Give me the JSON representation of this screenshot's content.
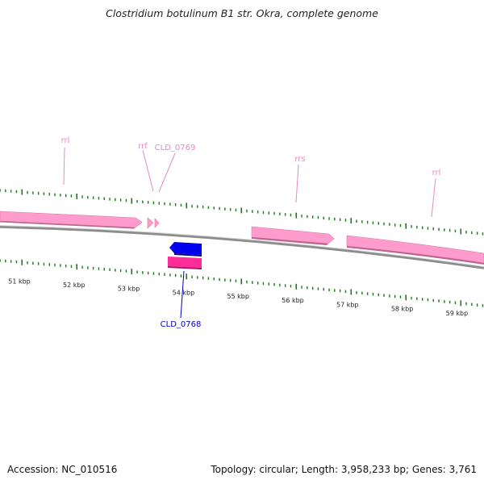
{
  "title": "Clostridium botulinum B1 str. Okra, complete genome",
  "footer": {
    "accession": "Accession: NC_010516",
    "summary": "Topology: circular; Length: 3,958,233 bp; Genes: 3,761"
  },
  "colors": {
    "backbone": "#8c8c8c",
    "rna_feature": "#ff9ccd",
    "cds_forward": "#0000ee",
    "cds_reverse": "#ff2d9a",
    "tick": "#1a7a1a",
    "label_rna": "#e889c0",
    "label_cds": "#0000cc",
    "scale_text": "#222222"
  },
  "scale": {
    "labels": [
      "51 kbp",
      "52 kbp",
      "53 kbp",
      "54 kbp",
      "55 kbp",
      "56 kbp",
      "57 kbp",
      "58 kbp",
      "59 kbp"
    ]
  },
  "features": [
    {
      "name": "rrl",
      "type": "rRNA",
      "strand": "+"
    },
    {
      "name": "rrf",
      "type": "rRNA",
      "strand": "+"
    },
    {
      "name": "CLD_0769",
      "type": "CDS",
      "strand": "+"
    },
    {
      "name": "rrs",
      "type": "rRNA",
      "strand": "+"
    },
    {
      "name": "rrl",
      "type": "rRNA",
      "strand": "+"
    },
    {
      "name": "CLD_0768",
      "type": "CDS",
      "strand": "-"
    }
  ]
}
